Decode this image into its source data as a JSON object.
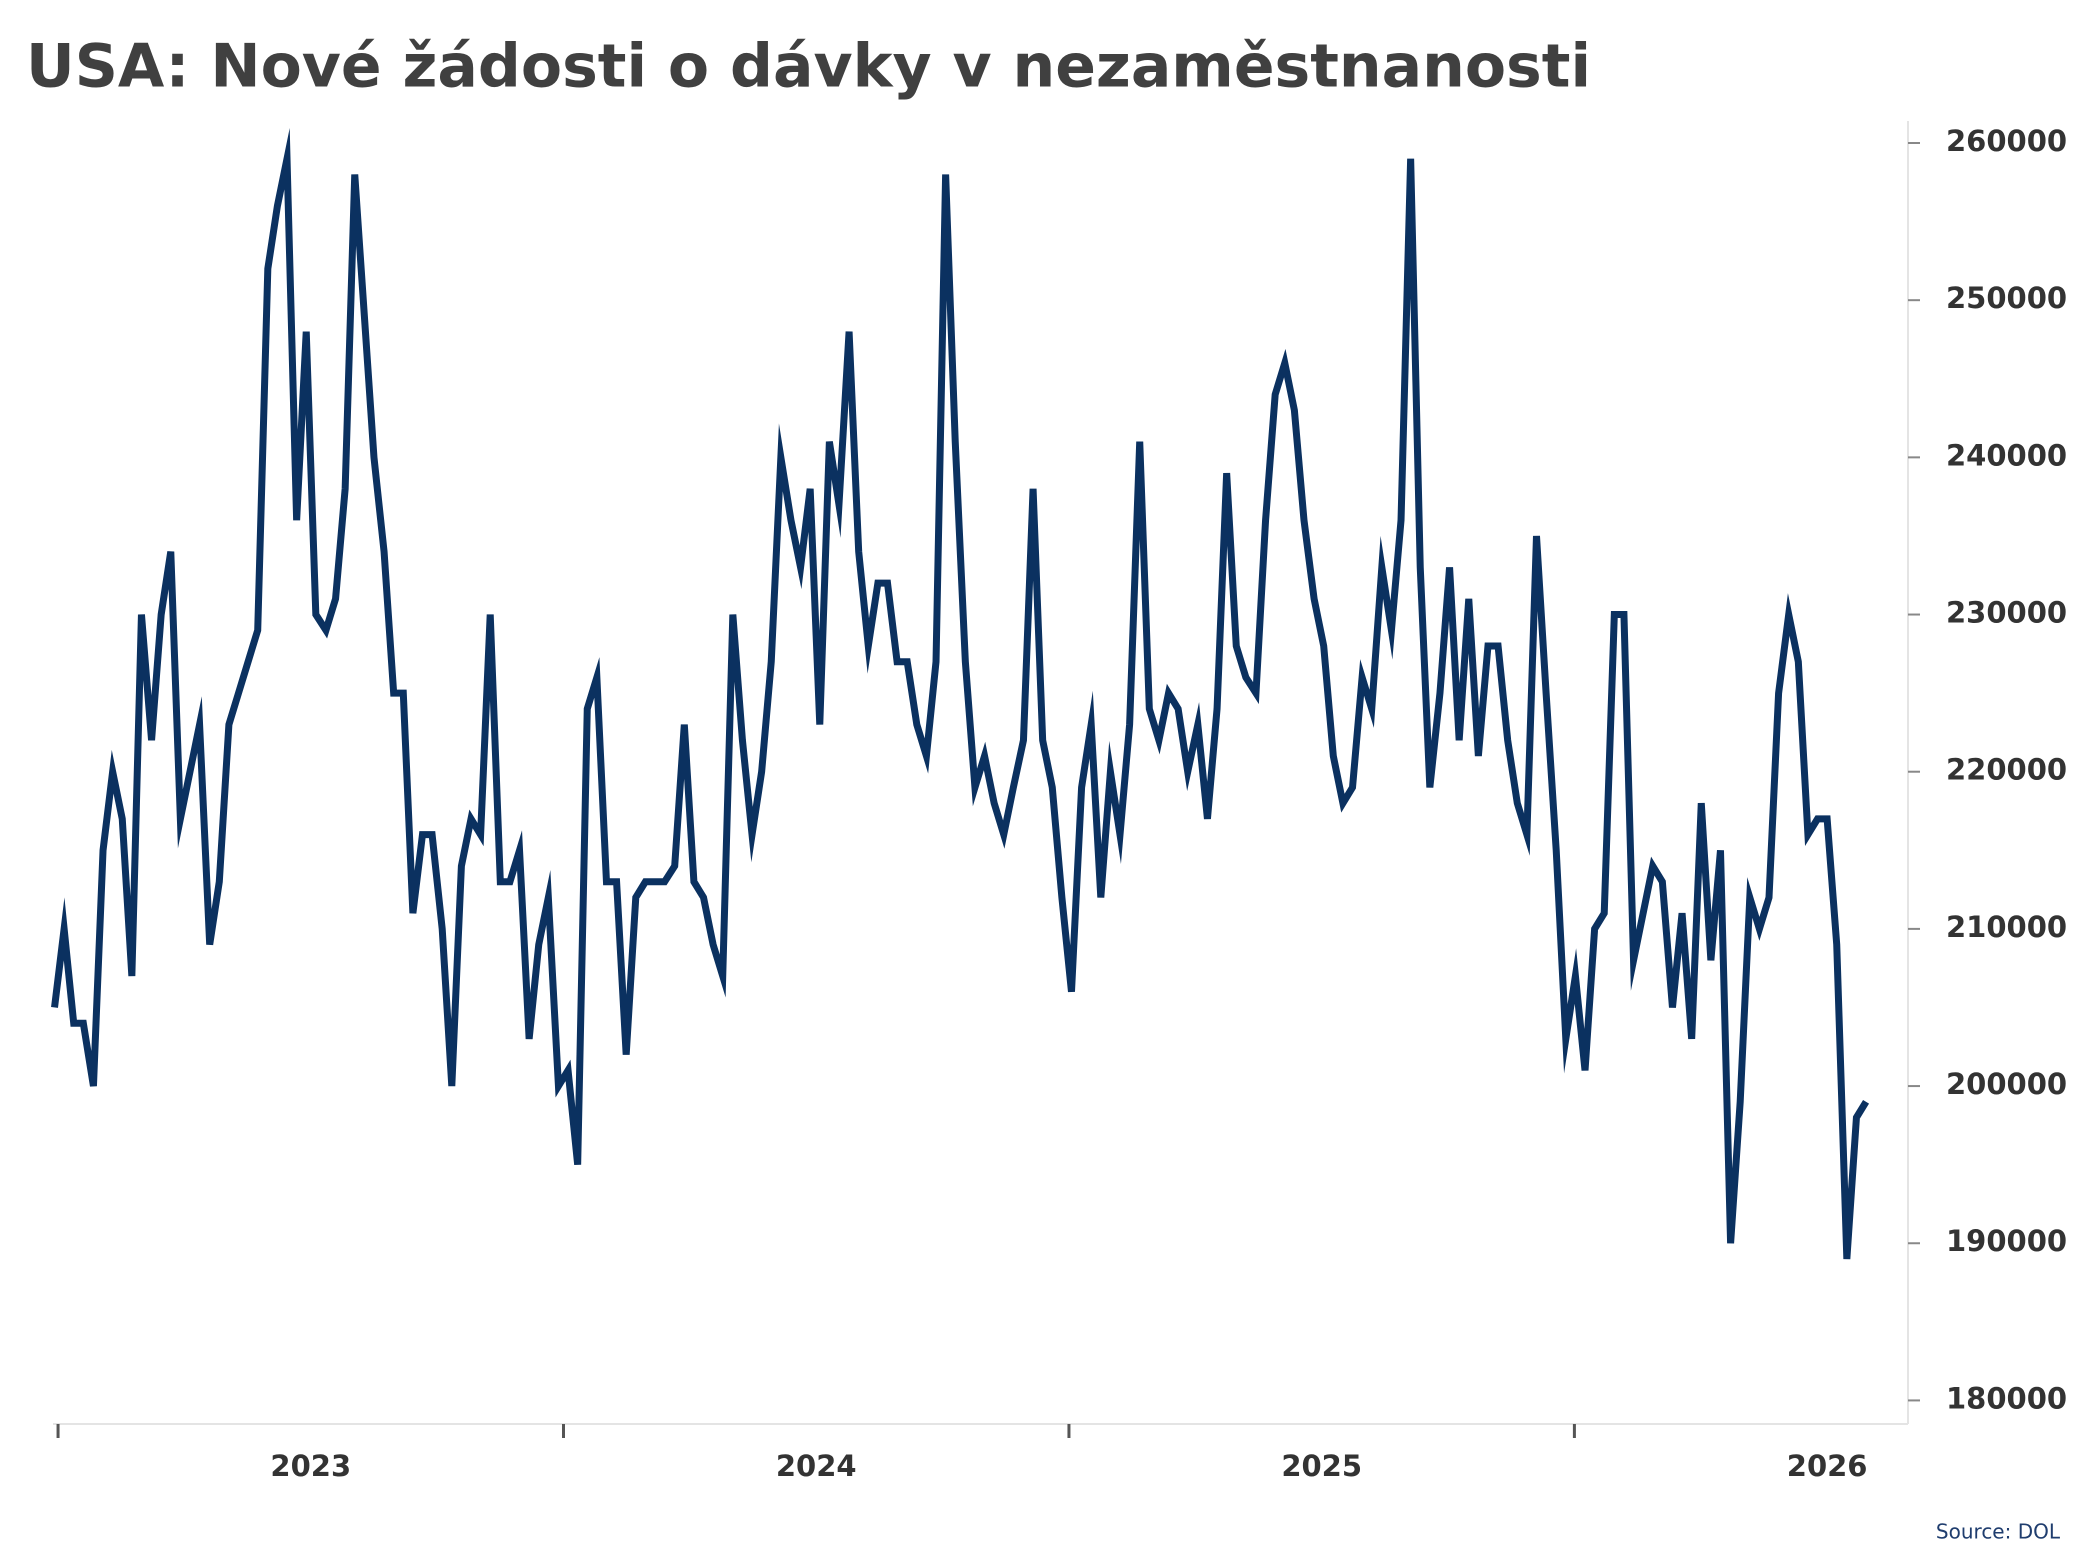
{
  "chart_data": {
    "type": "line",
    "title": "USA: Nové žádosti o dávky v nezaměstnanosti",
    "source": "Source: DOL",
    "color": "#0b3160",
    "grid": false,
    "x": [
      2022.493,
      2022.512,
      2022.531,
      2022.55,
      2022.57,
      2022.589,
      2022.608,
      2022.627,
      2022.646,
      2022.665,
      2022.685,
      2022.704,
      2022.723,
      2022.742,
      2022.761,
      2022.78,
      2022.8,
      2022.819,
      2022.838,
      2022.857,
      2022.876,
      2022.895,
      2022.915,
      2022.934,
      2022.953,
      2022.972,
      2022.991,
      2023.01,
      2023.03,
      2023.049,
      2023.068,
      2023.087,
      2023.106,
      2023.125,
      2023.145,
      2023.164,
      2023.183,
      2023.202,
      2023.221,
      2023.24,
      2023.26,
      2023.279,
      2023.298,
      2023.317,
      2023.336,
      2023.355,
      2023.375,
      2023.394,
      2023.413,
      2023.432,
      2023.451,
      2023.47,
      2023.49,
      2023.509,
      2023.528,
      2023.547,
      2023.566,
      2023.585,
      2023.605,
      2023.624,
      2023.643,
      2023.662,
      2023.681,
      2023.7,
      2023.72,
      2023.739,
      2023.758,
      2023.777,
      2023.796,
      2023.815,
      2023.835,
      2023.854,
      2023.873,
      2023.892,
      2023.911,
      2023.93,
      2023.95,
      2023.969,
      2023.988,
      2024.007,
      2024.026,
      2024.045,
      2024.065,
      2024.084,
      2024.103,
      2024.122,
      2024.141,
      2024.16,
      2024.18,
      2024.199,
      2024.218,
      2024.237,
      2024.256,
      2024.275,
      2024.295,
      2024.314,
      2024.333,
      2024.352,
      2024.371,
      2024.39,
      2024.41,
      2024.429,
      2024.448,
      2024.467,
      2024.486,
      2024.505,
      2024.525,
      2024.544,
      2024.563,
      2024.582,
      2024.601,
      2024.62,
      2024.64,
      2024.659,
      2024.678,
      2024.697,
      2024.716,
      2024.735,
      2024.755,
      2024.774,
      2024.793,
      2024.812,
      2024.831,
      2024.85,
      2024.87,
      2024.889,
      2024.908,
      2024.927,
      2024.946,
      2024.965,
      2024.985,
      2025.004,
      2025.023,
      2025.042,
      2025.061,
      2025.08,
      2025.099,
      2025.119,
      2025.138,
      2025.157,
      2025.176,
      2025.195,
      2025.214,
      2025.234,
      2025.253,
      2025.272,
      2025.291,
      2025.31,
      2025.329,
      2025.349,
      2025.368,
      2025.387,
      2025.406,
      2025.425,
      2025.444,
      2025.464,
      2025.483,
      2025.502,
      2025.521,
      2025.54,
      2025.559,
      2025.579,
      2025.598,
      2025.617,
      2025.636,
      2025.655,
      2025.674,
      2025.694,
      2025.713,
      2025.732,
      2025.751,
      2025.77,
      2025.789,
      2025.809,
      2025.828,
      2025.847,
      2025.866,
      2025.885,
      2025.904,
      2025.924,
      2025.943,
      2025.962,
      2025.981,
      2026.0,
      2026.019,
      2026.039,
      2026.058,
      2026.077
    ],
    "values": [
      205000,
      210000,
      204000,
      204000,
      200000,
      215000,
      220000,
      217000,
      207000,
      230000,
      222000,
      230000,
      234000,
      217000,
      220000,
      223000,
      209000,
      213000,
      223000,
      225000,
      227000,
      229000,
      252000,
      256000,
      259000,
      236000,
      248000,
      230000,
      229000,
      231000,
      238000,
      258000,
      249000,
      240000,
      234000,
      225000,
      225000,
      211000,
      216000,
      216000,
      210000,
      200000,
      214000,
      217000,
      216000,
      230000,
      213000,
      213000,
      215000,
      203000,
      209000,
      212000,
      200000,
      201000,
      195000,
      224000,
      226000,
      213000,
      213000,
      202000,
      212000,
      213000,
      213000,
      213000,
      214000,
      223000,
      213000,
      212000,
      209000,
      207000,
      230000,
      222000,
      216000,
      220000,
      227000,
      240000,
      236000,
      233000,
      238000,
      223000,
      241000,
      237000,
      248000,
      234000,
      228000,
      232000,
      232000,
      227000,
      227000,
      223000,
      221000,
      227000,
      258000,
      241000,
      227000,
      219000,
      221000,
      218000,
      216000,
      219000,
      222000,
      238000,
      222000,
      219000,
      212000,
      206000,
      219000,
      223000,
      212000,
      220000,
      216000,
      223000,
      241000,
      224000,
      222000,
      225000,
      224000,
      220000,
      223000,
      217000,
      224000,
      239000,
      228000,
      226000,
      225000,
      236000,
      244000,
      246000,
      243000,
      236000,
      231000,
      228000,
      221000,
      218000,
      219000,
      226000,
      224000,
      233000,
      229000,
      236000,
      259000,
      233000,
      219000,
      225000,
      233000,
      222000,
      231000,
      221000,
      228000,
      228000,
      222000,
      218000,
      216000,
      235000,
      225000,
      215000,
      203000,
      207000,
      201000,
      210000,
      211000,
      230000,
      230000,
      208000,
      211000,
      214000,
      213000,
      205000,
      211000,
      203000,
      218000,
      208000,
      215000,
      190000,
      199000,
      212000,
      210000,
      212000,
      225000,
      230000,
      227000,
      216000,
      217000,
      217000,
      209000,
      189000,
      198000,
      199000
    ],
    "xlim": [
      2022.49,
      2026.16
    ],
    "xticks": [
      2023,
      2024,
      2025,
      2026
    ],
    "x_minor_ticks": [
      2022.5,
      2023.5,
      2024.5,
      2025.5
    ],
    "ylim": [
      178500,
      261400
    ],
    "yticks": [
      180000,
      190000,
      200000,
      210000,
      220000,
      230000,
      240000,
      250000,
      260000
    ]
  }
}
